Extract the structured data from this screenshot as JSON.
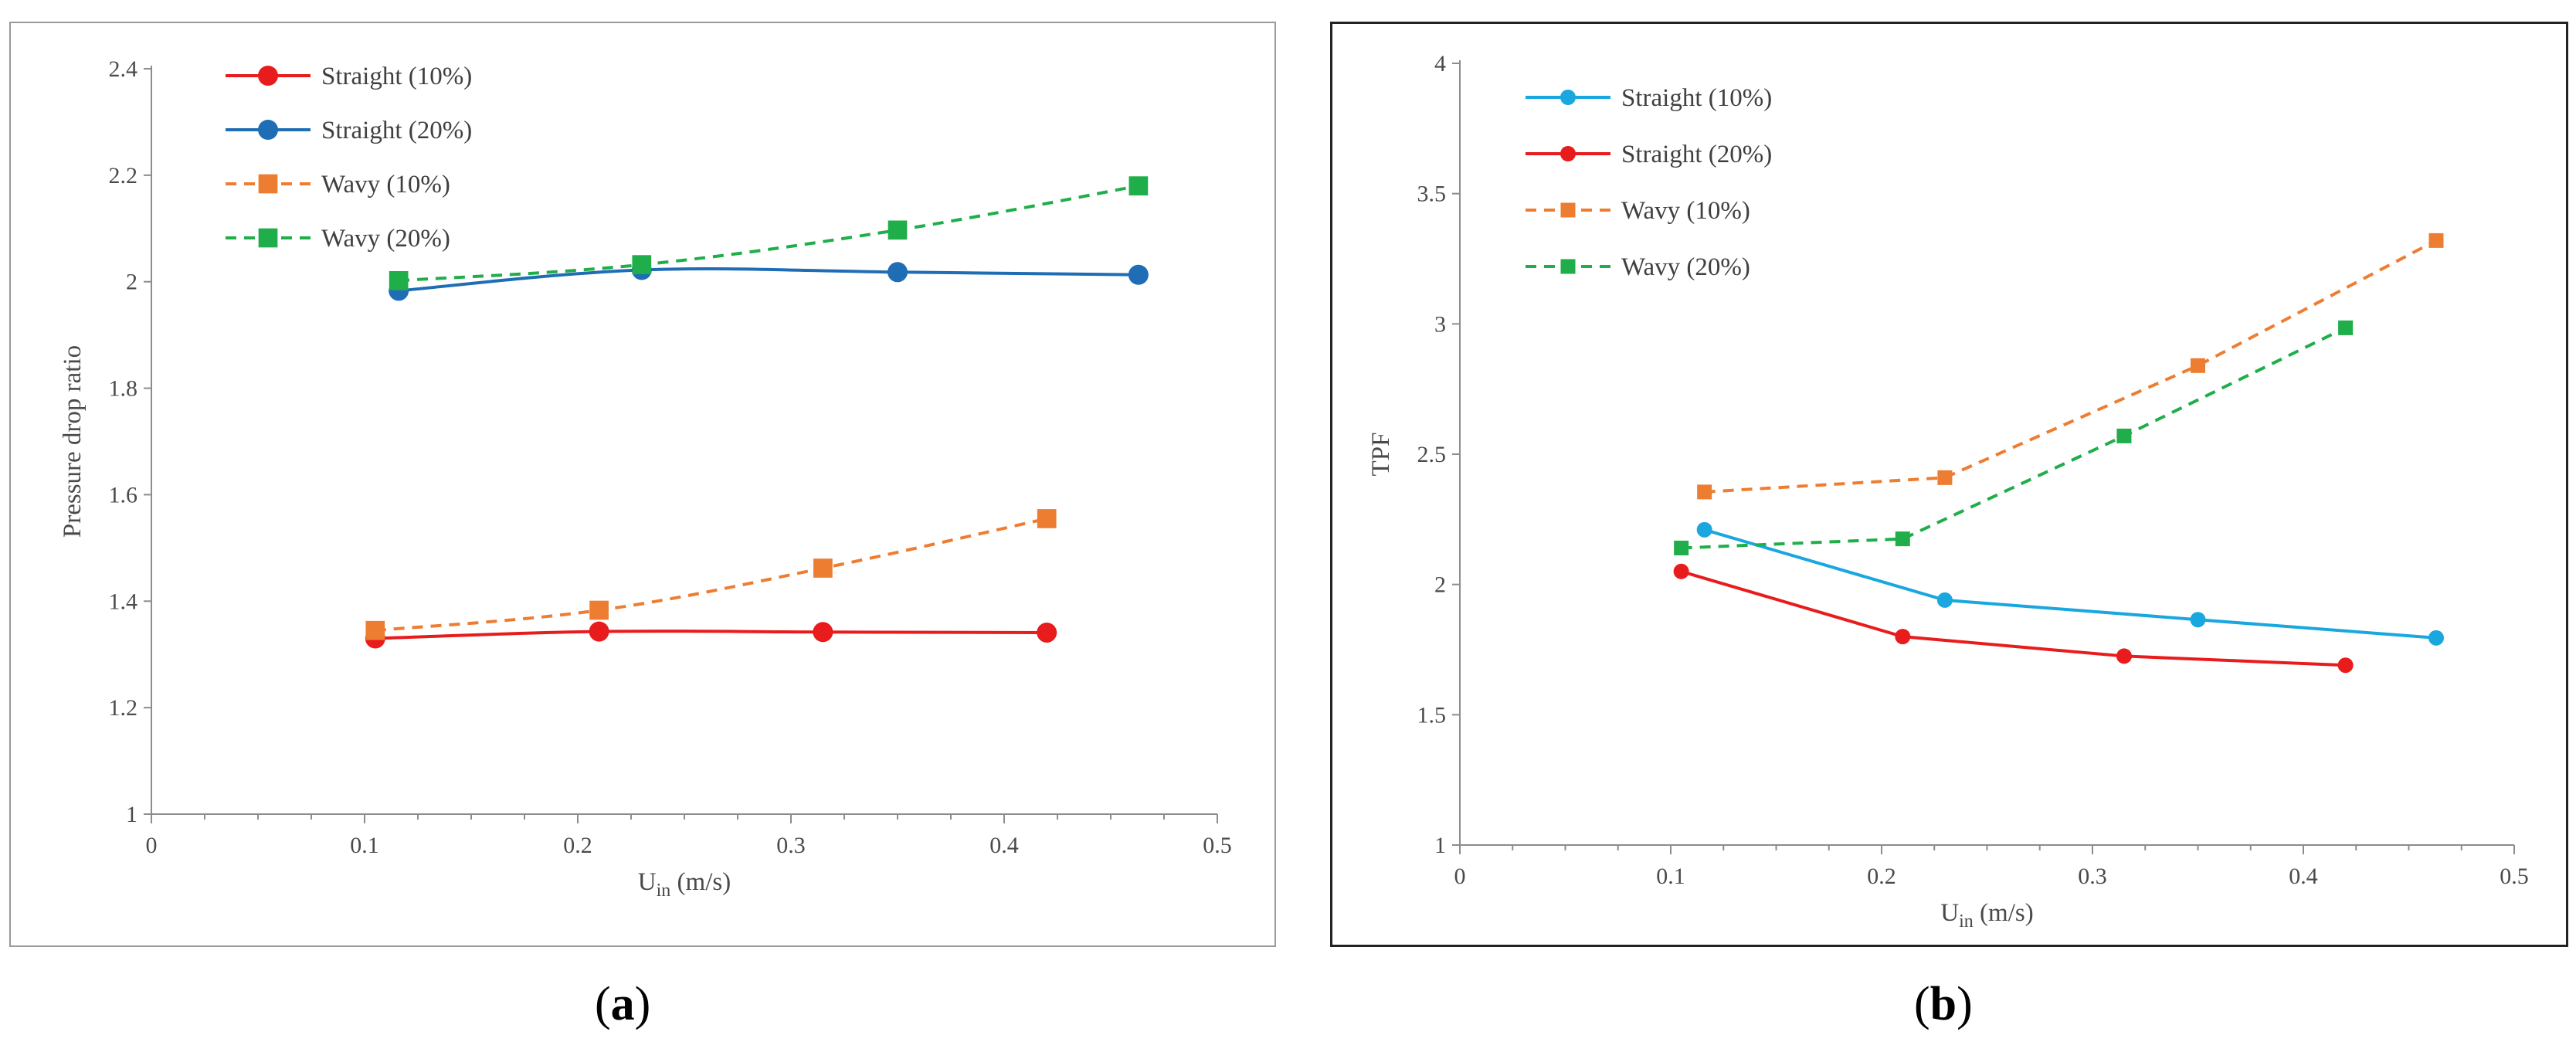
{
  "captions": {
    "a_open": "(",
    "a_letter": "a",
    "a_close": ")",
    "b_open": "(",
    "b_letter": "b",
    "b_close": ")"
  },
  "chart_data": [
    {
      "type": "line",
      "panel": "a",
      "title": "",
      "xlabel_main": "U",
      "xlabel_sub": "in",
      "xlabel_unit": " (m/s)",
      "ylabel": "Pressure drop ratio",
      "xlim": [
        0,
        0.5
      ],
      "ylim": [
        1,
        2.4
      ],
      "xticks": [
        0,
        0.1,
        0.2,
        0.3,
        0.4,
        0.5
      ],
      "xtick_labels": [
        "0",
        "0.1",
        "0.2",
        "0.3",
        "0.4",
        "0.5"
      ],
      "yticks": [
        1,
        1.2,
        1.4,
        1.6,
        1.8,
        2,
        2.2,
        2.4
      ],
      "ytick_labels": [
        "1",
        "1.2",
        "1.4",
        "1.6",
        "1.8",
        "2",
        "2.2",
        "2.4"
      ],
      "grid": false,
      "legend_position": "top-left",
      "series": [
        {
          "name": "Straight (10%)",
          "color": "#e81c1c",
          "dash": false,
          "marker": "circle",
          "smooth": true,
          "x": [
            0.105,
            0.21,
            0.315,
            0.42
          ],
          "y": [
            1.33,
            1.343,
            1.342,
            1.341
          ]
        },
        {
          "name": "Straight (20%)",
          "color": "#1f6db5",
          "dash": false,
          "marker": "circle",
          "smooth": true,
          "x": [
            0.116,
            0.23,
            0.35,
            0.463
          ],
          "y": [
            1.983,
            2.022,
            2.018,
            2.013
          ]
        },
        {
          "name": "Wavy (10%)",
          "color": "#ed7d31",
          "dash": true,
          "marker": "square",
          "smooth": true,
          "x": [
            0.105,
            0.21,
            0.315,
            0.42
          ],
          "y": [
            1.345,
            1.383,
            1.462,
            1.555
          ]
        },
        {
          "name": "Wavy (20%)",
          "color": "#1fae4a",
          "dash": true,
          "marker": "square",
          "smooth": true,
          "x": [
            0.116,
            0.23,
            0.35,
            0.463
          ],
          "y": [
            2.002,
            2.032,
            2.097,
            2.18
          ]
        }
      ]
    },
    {
      "type": "line",
      "panel": "b",
      "title": "",
      "xlabel_main": "U",
      "xlabel_sub": "in",
      "xlabel_unit": " (m/s)",
      "ylabel": "TPF",
      "xlim": [
        0,
        0.5
      ],
      "ylim": [
        1,
        4
      ],
      "xticks": [
        0,
        0.1,
        0.2,
        0.3,
        0.4,
        0.5
      ],
      "xtick_labels": [
        "0",
        "0.1",
        "0.2",
        "0.3",
        "0.4",
        "0.5"
      ],
      "yticks": [
        1,
        1.5,
        2,
        2.5,
        3,
        3.5,
        4
      ],
      "ytick_labels": [
        "1",
        "1.5",
        "2",
        "2.5",
        "3",
        "3.5",
        "4"
      ],
      "grid": false,
      "legend_position": "top-left",
      "series": [
        {
          "name": "Straight (10%)",
          "color": "#1aa7e0",
          "dash": false,
          "marker": "circle",
          "smooth": false,
          "x": [
            0.116,
            0.23,
            0.35,
            0.463
          ],
          "y": [
            2.21,
            1.94,
            1.865,
            1.795
          ]
        },
        {
          "name": "Straight (20%)",
          "color": "#e81c1c",
          "dash": false,
          "marker": "circle",
          "smooth": false,
          "x": [
            0.105,
            0.21,
            0.315,
            0.42
          ],
          "y": [
            2.05,
            1.8,
            1.725,
            1.69
          ]
        },
        {
          "name": "Wavy (10%)",
          "color": "#ed7d31",
          "dash": true,
          "marker": "square",
          "smooth": false,
          "x": [
            0.116,
            0.23,
            0.35,
            0.463
          ],
          "y": [
            2.355,
            2.41,
            2.84,
            3.32
          ]
        },
        {
          "name": "Wavy (20%)",
          "color": "#1fae4a",
          "dash": true,
          "marker": "square",
          "smooth": false,
          "x": [
            0.105,
            0.21,
            0.315,
            0.42
          ],
          "y": [
            2.14,
            2.175,
            2.57,
            2.985
          ]
        }
      ]
    }
  ]
}
